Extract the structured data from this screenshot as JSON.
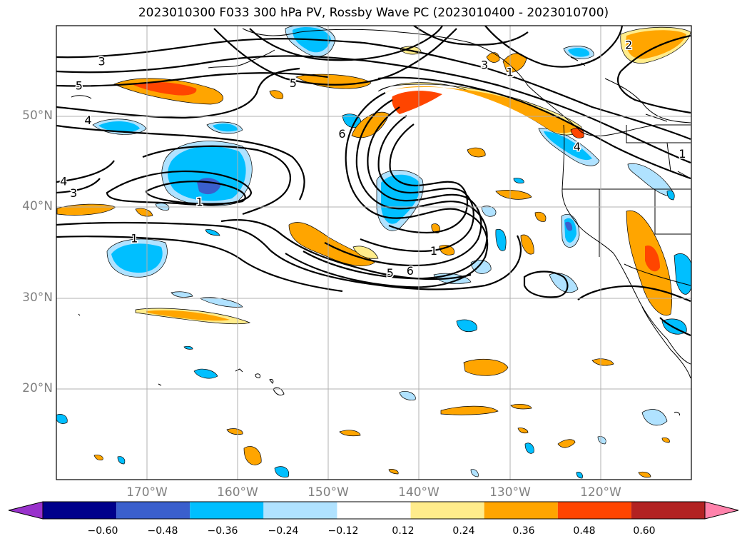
{
  "title": "2023010300 F033 300 hPa PV, Rossby Wave PC (2023010400 - 2023010700)",
  "map": {
    "projection": "cylindrical",
    "lon_range": [
      -180,
      -110
    ],
    "lat_range": [
      10,
      60
    ],
    "lat_labels": [
      {
        "lat": 50,
        "text": "50°N"
      },
      {
        "lat": 40,
        "text": "40°N"
      },
      {
        "lat": 30,
        "text": "30°N"
      },
      {
        "lat": 20,
        "text": "20°N"
      }
    ],
    "lon_labels": [
      {
        "lon": -170,
        "text": "170°W"
      },
      {
        "lon": -160,
        "text": "160°W"
      },
      {
        "lon": -150,
        "text": "150°W"
      },
      {
        "lon": -140,
        "text": "140°W"
      },
      {
        "lon": -130,
        "text": "130°W"
      },
      {
        "lon": -120,
        "text": "120°W"
      }
    ],
    "gridlines": true,
    "pv_contour_labels": [
      {
        "lon": -175,
        "lat": 56.0,
        "text": "3"
      },
      {
        "lon": -177.5,
        "lat": 53.3,
        "text": "5"
      },
      {
        "lon": -176.5,
        "lat": 49.5,
        "text": "4"
      },
      {
        "lon": -179.2,
        "lat": 42.8,
        "text": "4"
      },
      {
        "lon": -178.1,
        "lat": 41.5,
        "text": "3"
      },
      {
        "lon": -171.4,
        "lat": 36.5,
        "text": "1"
      },
      {
        "lon": -164.2,
        "lat": 40.5,
        "text": "1"
      },
      {
        "lon": -153.9,
        "lat": 53.6,
        "text": "5"
      },
      {
        "lon": -148.5,
        "lat": 48.0,
        "text": "6"
      },
      {
        "lon": -132.8,
        "lat": 55.6,
        "text": "3"
      },
      {
        "lon": -130.0,
        "lat": 54.8,
        "text": "1"
      },
      {
        "lon": -143.2,
        "lat": 32.7,
        "text": "5"
      },
      {
        "lon": -141.0,
        "lat": 32.9,
        "text": "6"
      },
      {
        "lon": -138.4,
        "lat": 35.1,
        "text": "1"
      },
      {
        "lon": -116.9,
        "lat": 57.8,
        "text": "2"
      },
      {
        "lon": -122.6,
        "lat": 46.6,
        "text": "4"
      },
      {
        "lon": -111.0,
        "lat": 45.8,
        "text": "1"
      }
    ]
  },
  "colorbar": {
    "ticks": [
      "−0.60",
      "−0.48",
      "−0.36",
      "−0.24",
      "−0.12",
      "0.12",
      "0.24",
      "0.36",
      "0.48",
      "0.60"
    ],
    "colors": [
      "#9932cc",
      "#00008b",
      "#3a5fcd",
      "#00bfff",
      "#b0e2ff",
      "#ffffff",
      "#ffec8b",
      "#ffa500",
      "#ff4500",
      "#b22222",
      "#ff82ab"
    ]
  }
}
